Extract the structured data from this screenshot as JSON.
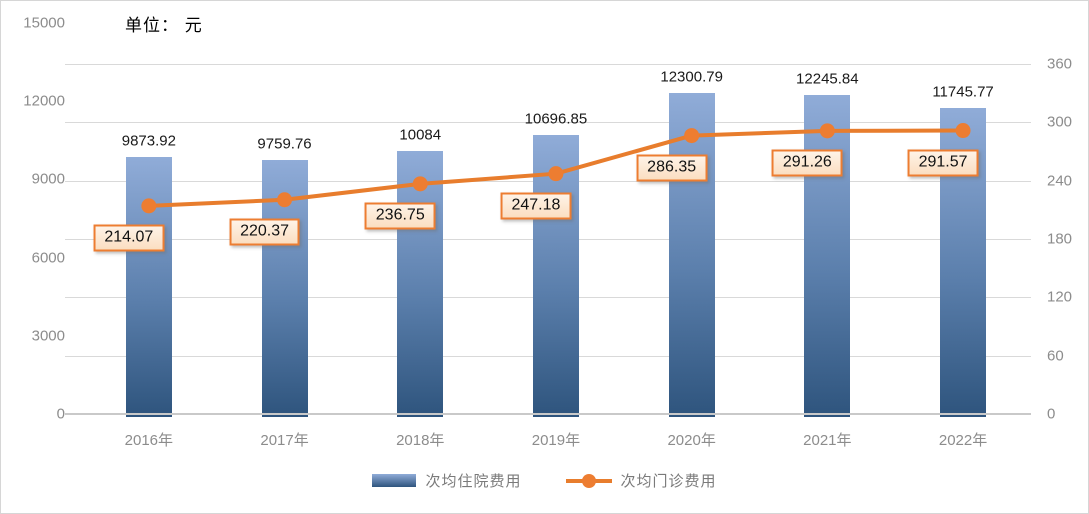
{
  "unit_label": "单位： 元",
  "colors": {
    "bar_gradient_top": "#90ACD8",
    "bar_gradient_bottom": "#2E547D",
    "line": "#E87D2D",
    "marker": "#ED7D31",
    "label_box_fill_top": "#FEF3E7",
    "label_box_fill_bottom": "#FBDEC1",
    "label_box_border": "#ED7D31",
    "gridline": "#D9D9D9",
    "axis_text": "#8C8C8C"
  },
  "chart_data": {
    "type": "bar+line",
    "categories": [
      "2016年",
      "2017年",
      "2018年",
      "2019年",
      "2020年",
      "2021年",
      "2022年"
    ],
    "series": [
      {
        "name": "次均住院费用",
        "type": "bar",
        "axis": "left",
        "values": [
          9873.92,
          9759.76,
          10084,
          10696.85,
          12300.79,
          12245.84,
          11745.77
        ]
      },
      {
        "name": "次均门诊费用",
        "type": "line",
        "axis": "right",
        "values": [
          214.07,
          220.37,
          236.75,
          247.18,
          286.35,
          291.26,
          291.57
        ]
      }
    ],
    "title": "单位： 元",
    "xlabel": "",
    "ylabel_left": "",
    "ylabel_right": "",
    "left_axis": {
      "ticks": [
        0,
        3000,
        6000,
        9000,
        12000,
        15000
      ],
      "range": [
        0,
        15000
      ]
    },
    "right_axis": {
      "ticks": [
        0,
        60,
        120,
        180,
        240,
        300,
        360
      ],
      "range": [
        0,
        360
      ]
    },
    "grid": true,
    "legend_position": "bottom"
  }
}
